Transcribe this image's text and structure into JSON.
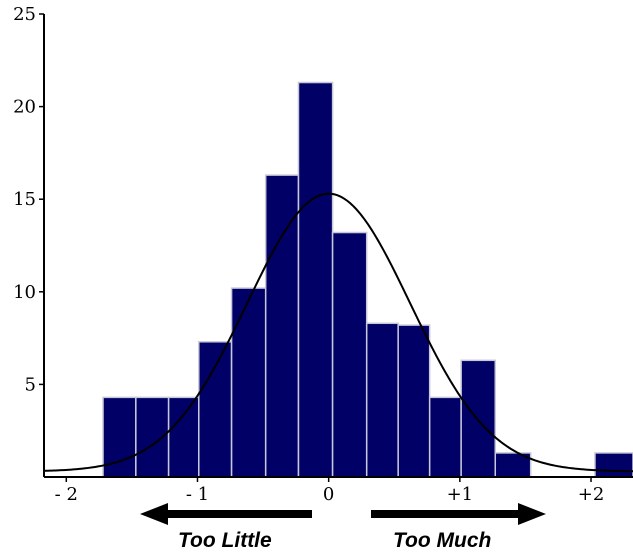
{
  "chart_data": {
    "type": "bar",
    "title": "",
    "xlabel": "",
    "ylabel": "",
    "xlim": [
      -2.17,
      2.32
    ],
    "ylim": [
      0,
      25
    ],
    "y_ticks": [
      "5",
      "10",
      "15",
      "20",
      "25"
    ],
    "y_tick_values": [
      5,
      10,
      15,
      20,
      25
    ],
    "x_ticks": [
      "- 2",
      "- 1",
      "0",
      "+1",
      "+2"
    ],
    "x_tick_values": [
      -2,
      -1,
      0,
      1,
      2
    ],
    "bins": [
      {
        "start": -1.72,
        "end": -1.47,
        "value": 4.3
      },
      {
        "start": -1.47,
        "end": -1.22,
        "value": 4.3
      },
      {
        "start": -1.22,
        "end": -0.99,
        "value": 4.3
      },
      {
        "start": -0.99,
        "end": -0.74,
        "value": 7.3
      },
      {
        "start": -0.74,
        "end": -0.48,
        "value": 10.2
      },
      {
        "start": -0.48,
        "end": -0.23,
        "value": 16.3
      },
      {
        "start": -0.23,
        "end": 0.03,
        "value": 21.3
      },
      {
        "start": 0.03,
        "end": 0.29,
        "value": 13.2
      },
      {
        "start": 0.29,
        "end": 0.53,
        "value": 8.3
      },
      {
        "start": 0.53,
        "end": 0.77,
        "value": 8.2
      },
      {
        "start": 0.77,
        "end": 1.01,
        "value": 4.3
      },
      {
        "start": 1.01,
        "end": 1.27,
        "value": 6.3
      },
      {
        "start": 1.27,
        "end": 1.54,
        "value": 1.3
      },
      {
        "start": 2.03,
        "end": 2.32,
        "value": 1.3
      }
    ],
    "curve": {
      "type": "normal",
      "mean": 0.0,
      "sd": 0.62,
      "peak": 15.3,
      "baseline": 0.3
    },
    "bar_color": "#000066",
    "annotations": {
      "left_arrow": "Too Little",
      "right_arrow": "Too Much"
    }
  }
}
